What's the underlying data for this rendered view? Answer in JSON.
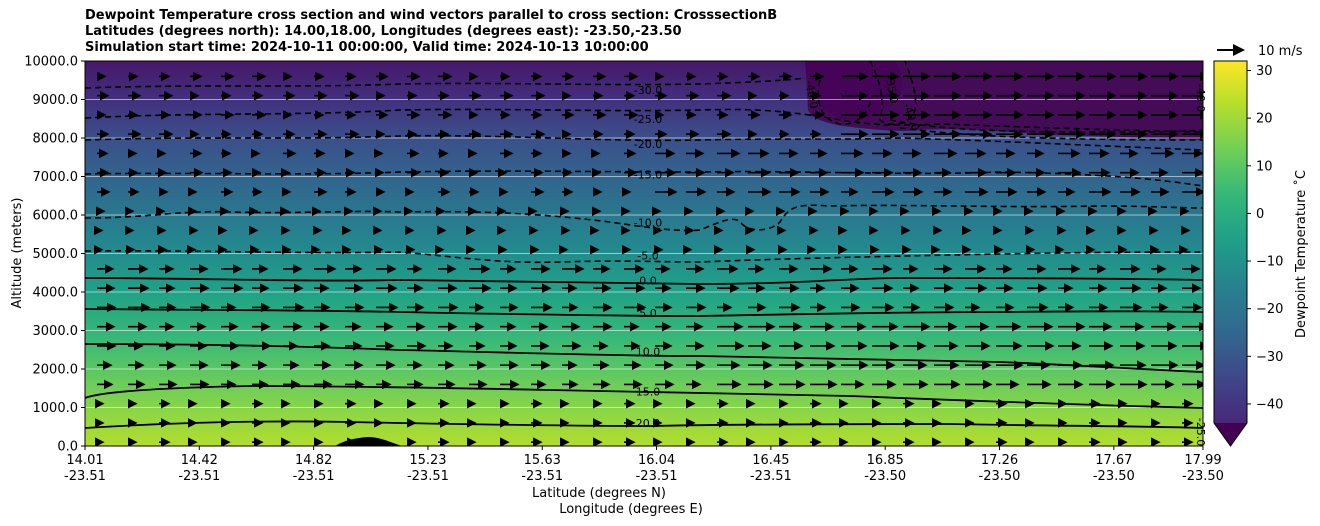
{
  "chart_data": {
    "type": "heatmap",
    "title": "Dewpoint Temperature cross section and wind vectors parallel to cross section: CrosssectionB",
    "subtitle_lines": [
      "Latitudes (degrees north): 14.00,18.00, Longitudes (degrees east): -23.50,-23.50",
      "Simulation start time: 2024-10-11 00:00:00, Valid time: 2024-10-13 10:00:00"
    ],
    "xlabel": "Latitude (degrees N)",
    "xlabel2": "Longitude (degrees E)",
    "ylabel": "Altitude (meters)",
    "x_ticks": [
      {
        "lat": "14.01",
        "lon": "-23.51"
      },
      {
        "lat": "14.42",
        "lon": "-23.51"
      },
      {
        "lat": "14.82",
        "lon": "-23.51"
      },
      {
        "lat": "15.23",
        "lon": "-23.51"
      },
      {
        "lat": "15.63",
        "lon": "-23.51"
      },
      {
        "lat": "16.04",
        "lon": "-23.51"
      },
      {
        "lat": "16.45",
        "lon": "-23.51"
      },
      {
        "lat": "16.85",
        "lon": "-23.50"
      },
      {
        "lat": "17.26",
        "lon": "-23.50"
      },
      {
        "lat": "17.67",
        "lon": "-23.50"
      },
      {
        "lat": "17.99",
        "lon": "-23.50"
      }
    ],
    "y_ticks": [
      "0.0",
      "1000.0",
      "2000.0",
      "3000.0",
      "4000.0",
      "5000.0",
      "6000.0",
      "7000.0",
      "8000.0",
      "9000.0",
      "10000.0"
    ],
    "ylim": [
      0,
      10000
    ],
    "colorbar": {
      "label": "Dewpoint Temperature ˚C",
      "ticks": [
        "30",
        "20",
        "10",
        "0",
        "−10",
        "−20",
        "−30",
        "−40"
      ],
      "range": [
        -44,
        32
      ],
      "extend": "min"
    },
    "contour_levels": [
      {
        "label": "-30.0",
        "altitude": 9250
      },
      {
        "label": "-25.0",
        "altitude": 8500
      },
      {
        "label": "-20.0",
        "altitude": 7850
      },
      {
        "label": "-15.0",
        "altitude": 7050
      },
      {
        "label": "-10.0",
        "altitude": 5800
      },
      {
        "label": "-5.0",
        "altitude": 4950
      },
      {
        "label": "0.0",
        "altitude": 4300
      },
      {
        "label": "5.0",
        "altitude": 3450
      },
      {
        "label": "10.0",
        "altitude": 2450
      },
      {
        "label": "15.0",
        "altitude": 1420
      },
      {
        "label": "20.0",
        "altitude": 600
      }
    ],
    "extra_contour_labels": [
      "-40.0",
      "-35.0",
      "-40.0",
      "-40.0",
      "-25.0"
    ],
    "grid": "horizontal",
    "quiver_key": "10 m/s"
  }
}
